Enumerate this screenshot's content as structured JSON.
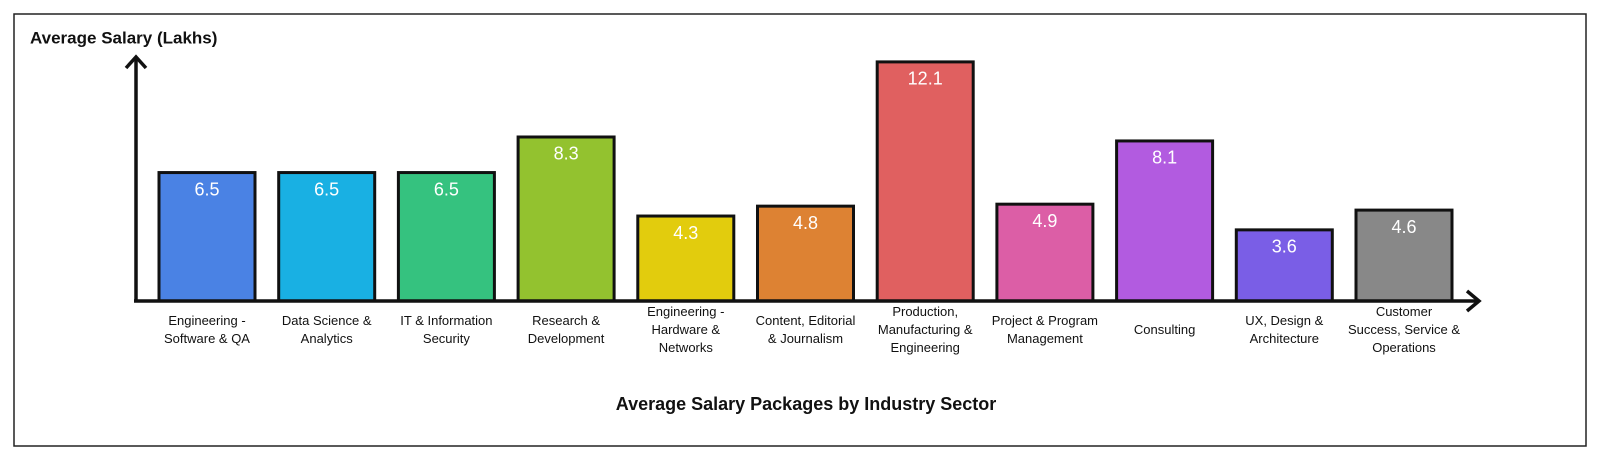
{
  "chart_data": {
    "type": "bar",
    "title": "Average Salary Packages by Industry Sector",
    "y_label": "Average Salary (Lakhs)",
    "categories": [
      "Engineering - Software & QA",
      "Data Science & Analytics",
      "IT & Information Security",
      "Research & Development",
      "Engineering - Hardware & Networks",
      "Content, Editorial & Journalism",
      "Production, Manufacturing & Engineering",
      "Project & Program Management",
      "Consulting",
      "UX, Design & Architecture",
      "Customer Success, Service & Operations"
    ],
    "values": [
      6.5,
      6.5,
      6.5,
      8.3,
      4.3,
      4.8,
      12.1,
      4.9,
      8.1,
      3.6,
      4.6
    ],
    "colors": [
      "#4a82e4",
      "#19b0e3",
      "#35c27f",
      "#93c22f",
      "#e2cc0d",
      "#dd8233",
      "#e06060",
      "#dc5ea6",
      "#b25be0",
      "#7a5ee6",
      "#888888"
    ],
    "ylim": [
      0,
      12.5
    ]
  }
}
